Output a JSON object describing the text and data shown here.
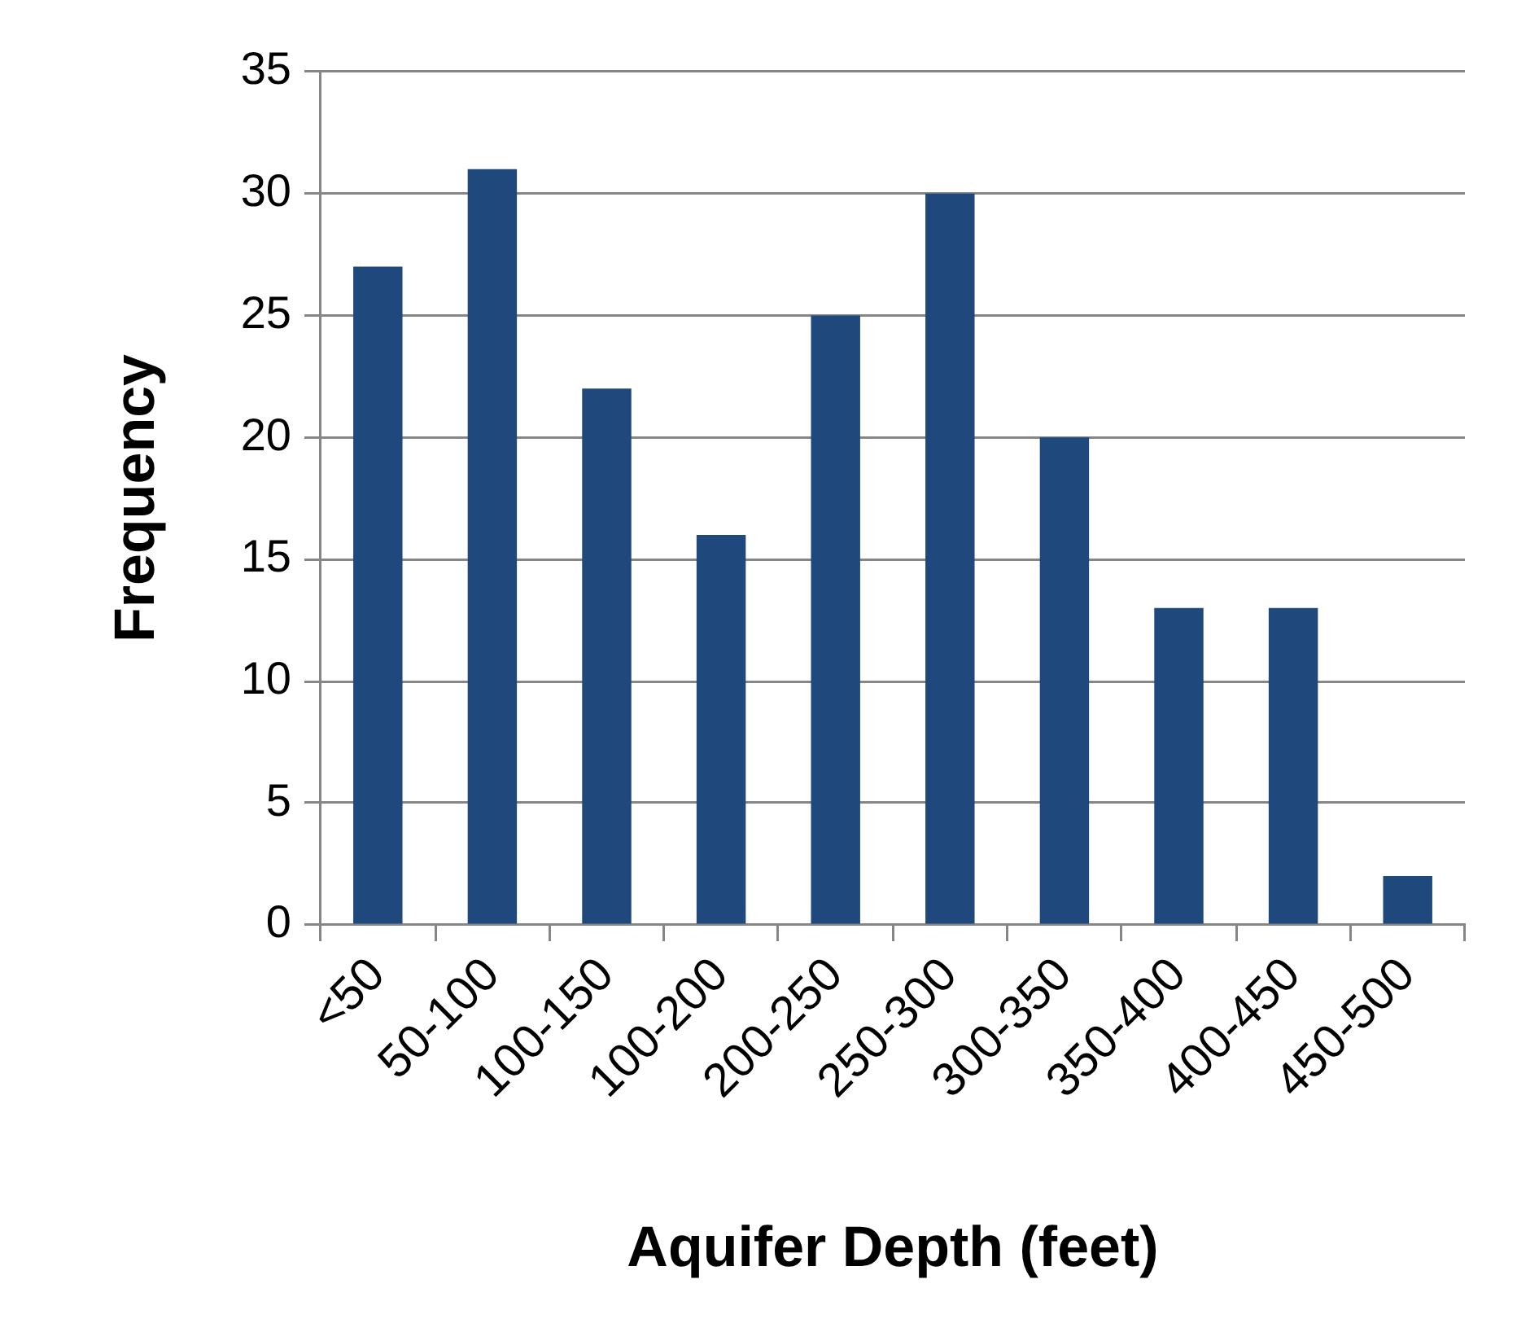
{
  "chart_data": {
    "type": "bar",
    "xlabel": "Aquifer Depth (feet)",
    "ylabel": "Frequency",
    "categories": [
      "<50",
      "50-100",
      "100-150",
      "100-200",
      "200-250",
      "250-300",
      "300-350",
      "350-400",
      "400-450",
      "450-500"
    ],
    "values": [
      27,
      31,
      22,
      16,
      25,
      30,
      20,
      13,
      13,
      2
    ],
    "color": "#1f497d",
    "ylim": [
      0,
      35
    ],
    "yticks": [
      0,
      5,
      10,
      15,
      20,
      25,
      30,
      35
    ],
    "grid": "y"
  }
}
